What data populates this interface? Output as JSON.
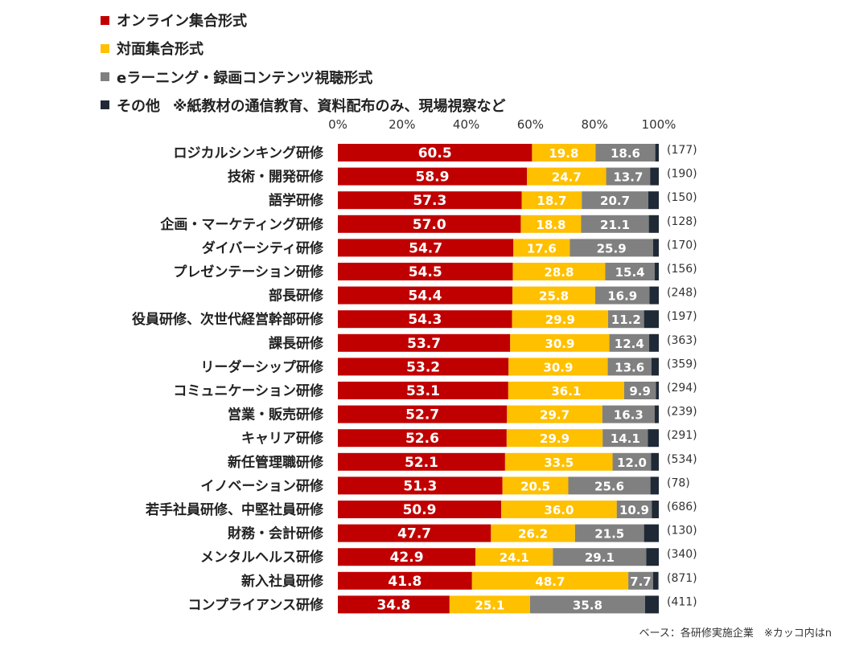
{
  "legend": [
    {
      "label": "オンライン集合形式",
      "color": "#c00000"
    },
    {
      "label": "対面集合形式",
      "color": "#ffc000"
    },
    {
      "label": "eラーニング・録画コンテンツ視聴形式",
      "color": "#808080"
    },
    {
      "label": "その他",
      "color": "#1f2a36",
      "note": "※紙教材の通信教育、資料配布のみ、現場視察など"
    }
  ],
  "footnote": "ベース：各研修実施企業　※カッコ内はn",
  "chart_data": {
    "type": "bar",
    "orientation": "horizontal",
    "stacked": true,
    "xlim": [
      0,
      100
    ],
    "x_ticks": [
      "0%",
      "20%",
      "40%",
      "60%",
      "80%",
      "100%"
    ],
    "tick_values": [
      0,
      20,
      40,
      60,
      80,
      100
    ],
    "categories": [
      "ロジカルシンキング研修",
      "技術・開発研修",
      "語学研修",
      "企画・マーケティング研修",
      "ダイバーシティ研修",
      "プレゼンテーション研修",
      "部長研修",
      "役員研修、次世代経営幹部研修",
      "課長研修",
      "リーダーシップ研修",
      "コミュニケーション研修",
      "営業・販売研修",
      "キャリア研修",
      "新任管理職研修",
      "イノベーション研修",
      "若手社員研修、中堅社員研修",
      "財務・会計研修",
      "メンタルヘルス研修",
      "新入社員研修",
      "コンプライアンス研修"
    ],
    "n_labels": [
      "(177)",
      "(190)",
      "(150)",
      "(128)",
      "(170)",
      "(156)",
      "(248)",
      "(197)",
      "(363)",
      "(359)",
      "(294)",
      "(239)",
      "(291)",
      "(534)",
      "(78)",
      "(686)",
      "(130)",
      "(340)",
      "(871)",
      "(411)"
    ],
    "series": [
      {
        "name": "オンライン集合形式",
        "color": "#c00000",
        "label_color": "#ffffff",
        "label_weight": "bold",
        "values": [
          60.5,
          58.9,
          57.3,
          57.0,
          54.7,
          54.5,
          54.4,
          54.3,
          53.7,
          53.2,
          53.1,
          52.7,
          52.6,
          52.1,
          51.3,
          50.9,
          47.7,
          42.9,
          41.8,
          34.8
        ]
      },
      {
        "name": "対面集合形式",
        "color": "#ffc000",
        "label_color": "#ffffff",
        "label_weight": "bold",
        "values": [
          19.8,
          24.7,
          18.7,
          18.8,
          17.6,
          28.8,
          25.8,
          29.9,
          30.9,
          30.9,
          36.1,
          29.7,
          29.9,
          33.5,
          20.5,
          36.0,
          26.2,
          24.1,
          48.7,
          25.1
        ]
      },
      {
        "name": "eラーニング・録画コンテンツ視聴形式",
        "color": "#808080",
        "label_color": "#ffffff",
        "label_weight": "bold",
        "values": [
          18.6,
          13.7,
          20.7,
          21.1,
          25.9,
          15.4,
          16.9,
          11.2,
          12.4,
          13.6,
          9.9,
          16.3,
          14.1,
          12.0,
          25.6,
          10.9,
          21.5,
          29.1,
          7.7,
          35.8
        ]
      },
      {
        "name": "その他",
        "color": "#1f2a36",
        "label_color": "#ffffff",
        "label_weight": "bold",
        "values": [
          1.1,
          2.7,
          3.3,
          3.1,
          1.8,
          1.3,
          2.9,
          4.6,
          3.0,
          2.3,
          0.9,
          1.3,
          3.4,
          2.4,
          2.6,
          2.2,
          4.6,
          3.9,
          1.7,
          4.3
        ]
      }
    ]
  }
}
